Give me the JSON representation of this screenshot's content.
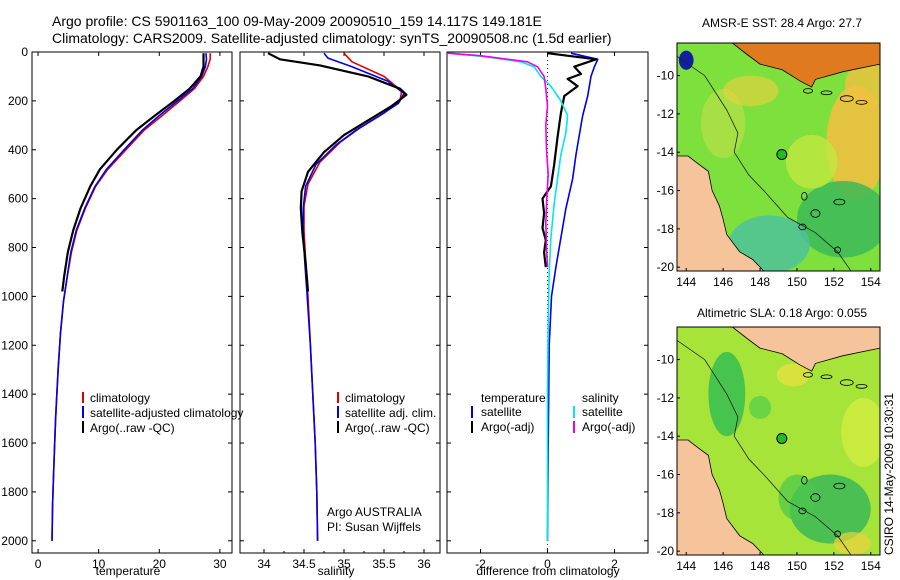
{
  "header": {
    "line1": "Argo profile: CS 5901163_100 09-May-2009 20090510_159 14.117S 149.181E",
    "line2": "Climatology: CARS2009. Satellite-adjusted climatology: synTS_20090508.nc (1.5d earlier)"
  },
  "colors": {
    "climatology": "#e00000",
    "satellite": "#0000ee",
    "argo": "#000000",
    "cyan": "#00e8e8",
    "magenta": "#ee00ee",
    "land": "#f5c49a"
  },
  "chart_data": [
    {
      "type": "line",
      "id": "temperature",
      "xlabel": "temperature",
      "ylabel": "",
      "xlim": [
        -1,
        32
      ],
      "ylim": [
        2050,
        0
      ],
      "yticks": [
        "0",
        "200",
        "400",
        "600",
        "800",
        "1000",
        "1200",
        "1400",
        "1600",
        "1800",
        "2000"
      ],
      "xticks": [
        "0",
        "10",
        "20",
        "30"
      ],
      "legend": [
        "climatology",
        "satellite-adjusted climatology",
        "Argo(..raw -QC)"
      ],
      "series": [
        {
          "name": "climatology",
          "color": "#e00000",
          "points": [
            [
              28.4,
              5
            ],
            [
              28.4,
              30
            ],
            [
              28.0,
              60
            ],
            [
              27.3,
              100
            ],
            [
              25.8,
              150
            ],
            [
              23.4,
              200
            ],
            [
              20.5,
              260
            ],
            [
              17.5,
              320
            ],
            [
              14.5,
              400
            ],
            [
              11.5,
              480
            ],
            [
              9.5,
              550
            ],
            [
              7.8,
              640
            ],
            [
              6.4,
              730
            ],
            [
              5.5,
              820
            ],
            [
              4.8,
              920
            ],
            [
              4.2,
              1020
            ],
            [
              3.7,
              1150
            ],
            [
              3.3,
              1300
            ],
            [
              2.9,
              1500
            ],
            [
              2.6,
              1700
            ],
            [
              2.4,
              1850
            ],
            [
              2.3,
              2000
            ]
          ]
        },
        {
          "name": "satellite",
          "color": "#0000ee",
          "points": [
            [
              27.7,
              5
            ],
            [
              27.8,
              30
            ],
            [
              27.6,
              60
            ],
            [
              27.0,
              100
            ],
            [
              25.5,
              150
            ],
            [
              23.0,
              200
            ],
            [
              20.0,
              260
            ],
            [
              17.2,
              320
            ],
            [
              14.2,
              400
            ],
            [
              11.3,
              480
            ],
            [
              9.4,
              550
            ],
            [
              7.7,
              640
            ],
            [
              6.3,
              730
            ],
            [
              5.4,
              820
            ],
            [
              4.8,
              920
            ],
            [
              4.2,
              1020
            ],
            [
              3.7,
              1150
            ],
            [
              3.3,
              1300
            ],
            [
              2.9,
              1500
            ],
            [
              2.6,
              1700
            ],
            [
              2.4,
              1850
            ],
            [
              2.3,
              2000
            ]
          ]
        },
        {
          "name": "Argo(..raw -QC)",
          "color": "#000000",
          "points": [
            [
              27.3,
              5
            ],
            [
              27.3,
              30
            ],
            [
              27.3,
              60
            ],
            [
              26.8,
              100
            ],
            [
              25.0,
              150
            ],
            [
              22.5,
              200
            ],
            [
              19.3,
              260
            ],
            [
              16.2,
              320
            ],
            [
              13.0,
              400
            ],
            [
              10.2,
              480
            ],
            [
              8.6,
              550
            ],
            [
              7.0,
              640
            ],
            [
              5.8,
              730
            ],
            [
              4.9,
              820
            ],
            [
              4.3,
              920
            ],
            [
              4.0,
              980
            ]
          ]
        }
      ]
    },
    {
      "type": "line",
      "id": "salinity",
      "xlabel": "salinity",
      "xlim": [
        33.7,
        36.2
      ],
      "ylim": [
        2050,
        0
      ],
      "xticks": [
        "34",
        "34.5",
        "35",
        "35.5",
        "36"
      ],
      "legend": [
        "climatology",
        "satellite adj. clim.",
        "Argo(..raw -QC)"
      ],
      "annotation": [
        "Argo AUSTRALIA",
        "PI: Susan Wijffels"
      ],
      "series": [
        {
          "name": "climatology",
          "color": "#e00000",
          "points": [
            [
              35.0,
              5
            ],
            [
              35.1,
              40
            ],
            [
              35.5,
              100
            ],
            [
              35.72,
              160
            ],
            [
              35.7,
              200
            ],
            [
              35.5,
              250
            ],
            [
              35.2,
              310
            ],
            [
              34.95,
              370
            ],
            [
              34.7,
              450
            ],
            [
              34.55,
              540
            ],
            [
              34.5,
              630
            ],
            [
              34.5,
              730
            ],
            [
              34.52,
              850
            ],
            [
              34.55,
              1000
            ],
            [
              34.58,
              1200
            ],
            [
              34.61,
              1400
            ],
            [
              34.64,
              1600
            ],
            [
              34.66,
              1800
            ],
            [
              34.67,
              2000
            ]
          ]
        },
        {
          "name": "satellite",
          "color": "#0000ee",
          "points": [
            [
              34.75,
              5
            ],
            [
              34.8,
              25
            ],
            [
              35.1,
              60
            ],
            [
              35.55,
              120
            ],
            [
              35.75,
              170
            ],
            [
              35.68,
              210
            ],
            [
              35.45,
              260
            ],
            [
              35.15,
              320
            ],
            [
              34.9,
              380
            ],
            [
              34.65,
              460
            ],
            [
              34.52,
              550
            ],
            [
              34.49,
              640
            ],
            [
              34.49,
              740
            ],
            [
              34.51,
              860
            ],
            [
              34.54,
              1000
            ],
            [
              34.58,
              1200
            ],
            [
              34.61,
              1400
            ],
            [
              34.64,
              1600
            ],
            [
              34.66,
              1800
            ],
            [
              34.67,
              2000
            ]
          ]
        },
        {
          "name": "Argo(..raw -QC)",
          "color": "#000000",
          "points": [
            [
              34.05,
              5
            ],
            [
              34.2,
              30
            ],
            [
              34.7,
              55
            ],
            [
              35.3,
              100
            ],
            [
              35.7,
              150
            ],
            [
              35.78,
              175
            ],
            [
              35.6,
              220
            ],
            [
              35.3,
              280
            ],
            [
              35.0,
              340
            ],
            [
              34.75,
              410
            ],
            [
              34.55,
              490
            ],
            [
              34.47,
              570
            ],
            [
              34.46,
              640
            ],
            [
              34.48,
              740
            ],
            [
              34.52,
              860
            ],
            [
              34.55,
              980
            ]
          ]
        }
      ]
    },
    {
      "type": "line",
      "id": "difference",
      "xlabel": "difference from climatology",
      "xlim": [
        -3,
        3
      ],
      "ylim": [
        2050,
        0
      ],
      "xticks": [
        "-2",
        "0",
        "2"
      ],
      "legend_left_title": "temperature",
      "legend_right_title": "salinity",
      "legend_left": [
        "satellite",
        "Argo(-adj)"
      ],
      "legend_right": [
        "satellite",
        "Argo(-adj)"
      ],
      "series": [
        {
          "name": "temperature satellite",
          "color": "#0000ee",
          "points": [
            [
              0.7,
              5
            ],
            [
              1.5,
              30
            ],
            [
              1.4,
              60
            ],
            [
              1.3,
              100
            ],
            [
              1.2,
              180
            ],
            [
              1.05,
              260
            ],
            [
              0.95,
              340
            ],
            [
              0.85,
              420
            ],
            [
              0.75,
              520
            ],
            [
              0.55,
              640
            ],
            [
              0.4,
              760
            ],
            [
              0.25,
              880
            ],
            [
              0.12,
              1000
            ],
            [
              0.05,
              1200
            ],
            [
              0.02,
              1600
            ],
            [
              0.0,
              2000
            ]
          ]
        },
        {
          "name": "temperature Argo",
          "color": "#000000",
          "points": [
            [
              0.0,
              5
            ],
            [
              1.45,
              30
            ],
            [
              0.8,
              60
            ],
            [
              1.0,
              90
            ],
            [
              0.6,
              110
            ],
            [
              0.9,
              140
            ],
            [
              0.5,
              180
            ],
            [
              0.4,
              250
            ],
            [
              0.3,
              350
            ],
            [
              0.2,
              460
            ],
            [
              0.1,
              550
            ],
            [
              -0.15,
              600
            ],
            [
              -0.1,
              660
            ],
            [
              -0.15,
              720
            ],
            [
              -0.05,
              770
            ],
            [
              -0.1,
              820
            ],
            [
              -0.05,
              880
            ]
          ]
        },
        {
          "name": "salinity satellite",
          "color": "#00e8e8",
          "points": [
            [
              -2.9,
              5
            ],
            [
              -1.8,
              20
            ],
            [
              -0.8,
              40
            ],
            [
              -0.4,
              60
            ],
            [
              -0.2,
              100
            ],
            [
              0.1,
              140
            ],
            [
              0.4,
              200
            ],
            [
              0.6,
              260
            ],
            [
              0.55,
              330
            ],
            [
              0.4,
              420
            ],
            [
              0.3,
              520
            ],
            [
              0.2,
              620
            ],
            [
              0.1,
              760
            ],
            [
              0.05,
              900
            ],
            [
              0.02,
              1100
            ],
            [
              0.0,
              1400
            ],
            [
              0.0,
              2000
            ]
          ]
        },
        {
          "name": "salinity Argo",
          "color": "#ee00ee",
          "points": [
            [
              -3.0,
              5
            ],
            [
              -2.0,
              15
            ],
            [
              -0.6,
              40
            ],
            [
              -0.3,
              60
            ],
            [
              -0.1,
              100
            ],
            [
              -0.05,
              150
            ],
            [
              0.0,
              220
            ],
            [
              -0.05,
              300
            ],
            [
              -0.03,
              400
            ],
            [
              0.02,
              500
            ],
            [
              -0.02,
              600
            ],
            [
              -0.05,
              700
            ],
            [
              -0.03,
              800
            ],
            [
              0.0,
              880
            ]
          ]
        }
      ]
    },
    {
      "type": "heatmap",
      "id": "sst-map",
      "title": "AMSR-E SST: 28.4 Argo: 27.7",
      "xticks": [
        "144",
        "146",
        "148",
        "150",
        "152",
        "154"
      ],
      "yticks": [
        "-10",
        "-12",
        "-14",
        "-16",
        "-18",
        "-20"
      ],
      "xlim": [
        143.5,
        154.5
      ],
      "ylim": [
        -20.2,
        -8.3
      ],
      "argo_position": [
        149.181,
        -14.117
      ]
    },
    {
      "type": "heatmap",
      "id": "sla-map",
      "title": "Altimetric SLA: 0.18 Argo: 0.055",
      "xticks": [
        "144",
        "146",
        "148",
        "150",
        "152",
        "154"
      ],
      "yticks": [
        "-10",
        "-12",
        "-14",
        "-16",
        "-18",
        "-20"
      ],
      "xlim": [
        143.5,
        154.5
      ],
      "ylim": [
        -20.2,
        -8.3
      ],
      "argo_position": [
        149.181,
        -14.117
      ]
    }
  ],
  "footer": {
    "stamp": "CSIRO 14-May-2009 10:30:31"
  }
}
